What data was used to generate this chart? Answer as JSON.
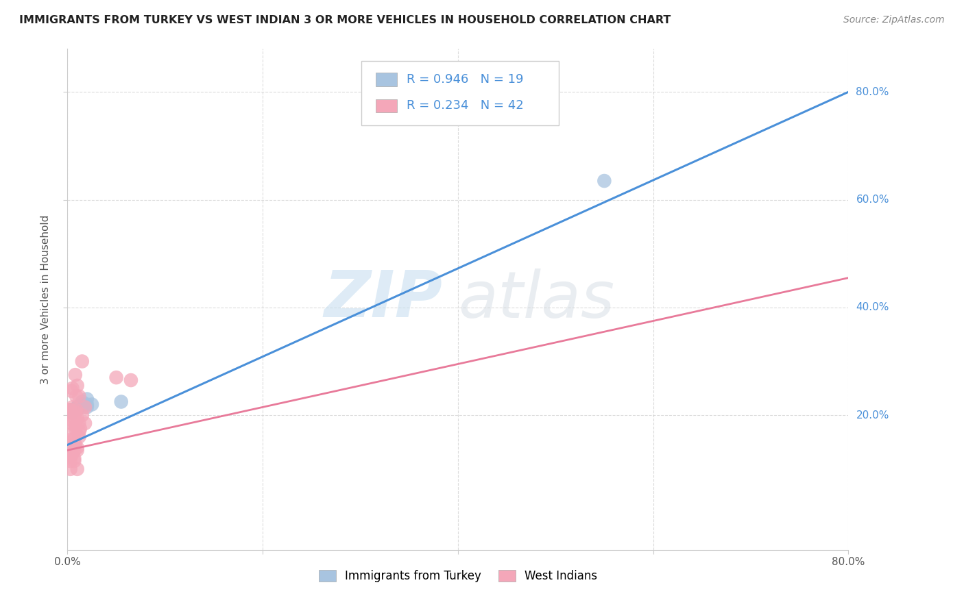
{
  "title": "IMMIGRANTS FROM TURKEY VS WEST INDIAN 3 OR MORE VEHICLES IN HOUSEHOLD CORRELATION CHART",
  "source": "Source: ZipAtlas.com",
  "ylabel": "3 or more Vehicles in Household",
  "turkey_r": 0.946,
  "turkey_n": 19,
  "westindian_r": 0.234,
  "westindian_n": 42,
  "turkey_color": "#a8c4e0",
  "westindian_color": "#f4a7b9",
  "turkey_line_color": "#4a90d9",
  "westindian_line_color": "#e87a9a",
  "background_color": "#ffffff",
  "grid_color": "#cccccc",
  "xlim": [
    0.0,
    0.8
  ],
  "ylim": [
    -0.05,
    0.88
  ],
  "turkey_line": [
    0.0,
    0.145,
    0.8,
    0.8
  ],
  "wi_line": [
    0.0,
    0.135,
    0.8,
    0.455
  ],
  "turkey_scatter_x": [
    0.01,
    0.015,
    0.02,
    0.005,
    0.01,
    0.02,
    0.015,
    0.01,
    0.005,
    0.025,
    0.02,
    0.01,
    0.015,
    0.005,
    0.01,
    0.055,
    0.55,
    0.015,
    0.008
  ],
  "turkey_scatter_y": [
    0.215,
    0.225,
    0.22,
    0.21,
    0.215,
    0.23,
    0.22,
    0.215,
    0.205,
    0.22,
    0.215,
    0.215,
    0.22,
    0.21,
    0.215,
    0.225,
    0.635,
    0.215,
    0.21
  ],
  "westindian_scatter_x": [
    0.005,
    0.01,
    0.005,
    0.015,
    0.008,
    0.003,
    0.01,
    0.012,
    0.004,
    0.008,
    0.015,
    0.009,
    0.004,
    0.012,
    0.008,
    0.018,
    0.003,
    0.007,
    0.012,
    0.004,
    0.008,
    0.012,
    0.005,
    0.009,
    0.013,
    0.018,
    0.004,
    0.007,
    0.05,
    0.065,
    0.007,
    0.003,
    0.01,
    0.008,
    0.004,
    0.007,
    0.01,
    0.004,
    0.007,
    0.003,
    0.007,
    0.01
  ],
  "westindian_scatter_y": [
    0.215,
    0.255,
    0.25,
    0.2,
    0.18,
    0.21,
    0.195,
    0.235,
    0.245,
    0.275,
    0.3,
    0.235,
    0.185,
    0.17,
    0.205,
    0.215,
    0.21,
    0.195,
    0.185,
    0.155,
    0.175,
    0.16,
    0.19,
    0.21,
    0.175,
    0.185,
    0.165,
    0.155,
    0.27,
    0.265,
    0.135,
    0.115,
    0.1,
    0.145,
    0.125,
    0.145,
    0.135,
    0.13,
    0.115,
    0.1,
    0.12,
    0.14
  ],
  "ytick_positions": [
    0.2,
    0.4,
    0.6,
    0.8
  ],
  "ytick_labels": [
    "20.0%",
    "40.0%",
    "60.0%",
    "80.0%"
  ]
}
